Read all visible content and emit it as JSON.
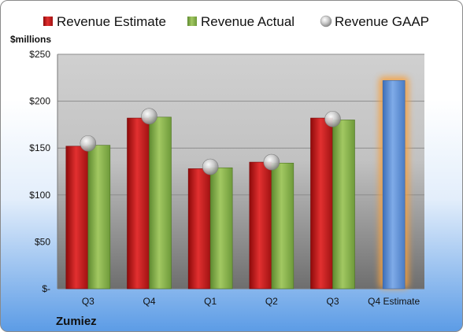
{
  "chart_data": {
    "type": "bar",
    "ylabel": "$millions",
    "ylim": [
      0,
      250
    ],
    "yticks": [
      {
        "value": 0,
        "label": "$-"
      },
      {
        "value": 50,
        "label": "$50"
      },
      {
        "value": 100,
        "label": "$100"
      },
      {
        "value": 150,
        "label": "$150"
      },
      {
        "value": 200,
        "label": "$200"
      },
      {
        "value": 250,
        "label": "$250"
      }
    ],
    "categories": [
      "Q3",
      "Q4",
      "Q1",
      "Q2",
      "Q3",
      "Q4 Estimate"
    ],
    "series": [
      {
        "name": "Revenue Estimate",
        "color": "#d02020",
        "values": [
          152,
          182,
          128,
          135,
          182,
          null
        ]
      },
      {
        "name": "Revenue Actual",
        "color": "#8cb44c",
        "values": [
          153,
          183,
          129,
          134,
          180,
          null
        ]
      },
      {
        "name": "Revenue GAAP",
        "color": "#c8c8c8",
        "values": [
          155,
          184,
          130,
          135,
          181,
          null
        ]
      }
    ],
    "estimate_bar": {
      "category": "Q4 Estimate",
      "value": 222,
      "color": "#5b8fd6",
      "glow": "#f5a040"
    },
    "legend": "top",
    "grid": true
  },
  "company": "Zumiez"
}
